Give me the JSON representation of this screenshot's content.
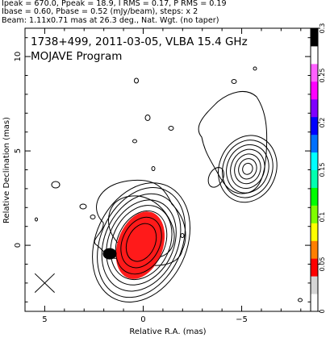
{
  "header": {
    "line1": "Ipeak = 670.0, Ppeak = 18.9, I RMS = 0.17, P RMS = 0.19",
    "line2": "Ibase = 0.60, Pbase = 0.52 (mJy/beam), steps: x 2",
    "line3": "Beam: 1.11x0.71 mas at 26.3 deg., Nat. Wgt. (no taper)"
  },
  "chart_data": {
    "type": "contour",
    "title": "1738+499, 2011-03-05, VLBA 15.4 GHz",
    "subtitle": "MOJAVE Program",
    "xlabel": "Relative R.A. (mas)",
    "ylabel": "Relative Declination (mas)",
    "xlim": [
      6.0,
      -8.5
    ],
    "ylim": [
      -3.5,
      11.5
    ],
    "xticks": [
      5,
      0,
      -5
    ],
    "yticks": [
      0,
      5,
      10
    ],
    "colorbar": {
      "label_values": [
        0.3,
        0.25,
        0.2,
        0.15,
        0.1,
        0.05,
        0
      ],
      "range": [
        0,
        0.3
      ],
      "colors": [
        "#ffffff",
        "#d5d5d5",
        "#ff0000",
        "#ff7f00",
        "#ffff00",
        "#7fff00",
        "#00ff00",
        "#00ffb0",
        "#00ffff",
        "#0070ff",
        "#0000ff",
        "#8000ff",
        "#ff00ff",
        "#ff60ff",
        "#ffffff",
        "#000000"
      ]
    },
    "core": {
      "x": 0.1,
      "y": 0.15,
      "contours_mas": [
        [
          0.7,
          1.05
        ],
        [
          0.95,
          1.4
        ],
        [
          1.2,
          1.75
        ],
        [
          1.45,
          2.05
        ],
        [
          1.65,
          2.35
        ],
        [
          1.85,
          2.7
        ],
        [
          2.05,
          3.05
        ],
        [
          2.3,
          3.3
        ]
      ],
      "pa_deg": 25
    },
    "jet_component": {
      "x": -5.3,
      "y": 4.05,
      "contours_mas": [
        [
          0.25,
          0.3
        ],
        [
          0.45,
          0.55
        ],
        [
          0.65,
          0.8
        ],
        [
          0.85,
          1.05
        ],
        [
          1.05,
          1.3
        ],
        [
          1.25,
          1.55
        ],
        [
          1.45,
          1.8
        ]
      ],
      "pa_deg": 20
    },
    "polarization": [
      {
        "color": "red",
        "x": 0.15,
        "y": 0.0,
        "rx_mas": 1.15,
        "ry_mas": 1.85,
        "pa_deg": 20
      },
      {
        "color": "black",
        "x": 1.7,
        "y": -0.45,
        "rx_mas": 0.35,
        "ry_mas": 0.3,
        "pa_deg": 0
      }
    ],
    "beam": {
      "major_mas": 1.11,
      "minor_mas": 0.71,
      "pa_deg": 26.3,
      "x": -3.7,
      "y": 3.6
    }
  }
}
